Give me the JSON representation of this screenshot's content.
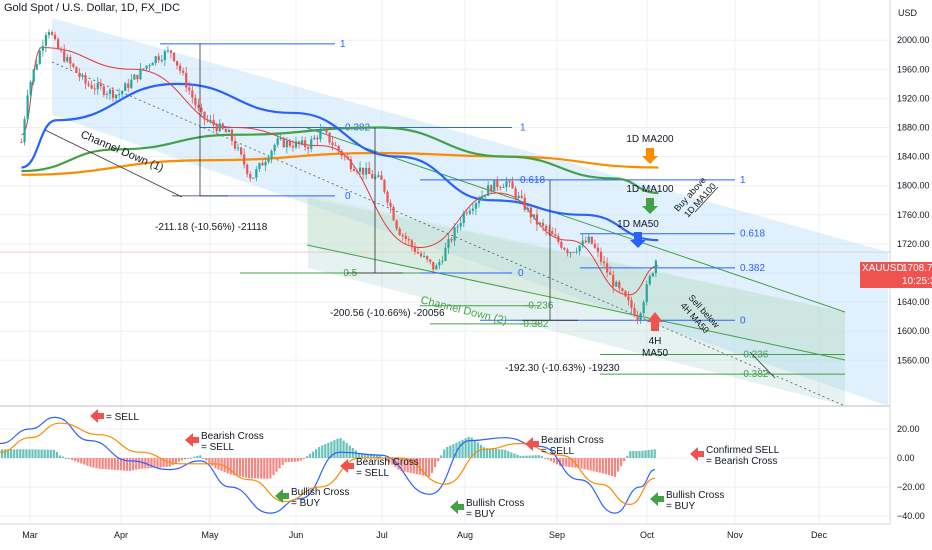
{
  "header": {
    "title": "Gold Spot / U.S. Dollar, 1D, FX_IDC",
    "currency": "USD"
  },
  "price_tag": {
    "symbol": "XAUUSD",
    "price": "1708.74",
    "countdown": "10:25:38"
  },
  "colors": {
    "up": "#26a69a",
    "down": "#ef5350",
    "ma200": "#fb8c00",
    "ma100": "#43a047",
    "ma50": "#2962ff",
    "fast_ma": "#e53935",
    "channel1": "#bbdefb",
    "channel2": "#c8e6c9",
    "fib_blue": "#2962ff",
    "fib_green": "#43a047",
    "grid": "#eef0f3",
    "axis_text": "#131722"
  },
  "icons": {
    "sell_arrow": "red-left-arrow-icon",
    "buy_arrow": "green-left-arrow-icon",
    "ma_arrow": "down-arrow-icon",
    "up_arrow": "up-arrow-icon"
  },
  "chart_data": [
    {
      "type": "candlestick",
      "title": "Gold Spot / U.S. Dollar, 1D, FX_IDC",
      "y_axis_ticks": [
        1560,
        1600,
        1640,
        1680,
        1720,
        1760,
        1800,
        1840,
        1880,
        1920,
        1960,
        2000
      ],
      "y_axis_labels": [
        "1560.00",
        "1600.00",
        "1640.00",
        "1680.00",
        "1720.00",
        "1760.00",
        "1800.00",
        "1840.00",
        "1880.00",
        "1920.00",
        "1960.00",
        "2000.00"
      ],
      "ylim": [
        1540,
        2040
      ],
      "x_axis_labels": [
        "Mar",
        "Apr",
        "May",
        "Jun",
        "Jul",
        "Aug",
        "Sep",
        "Oct",
        "Nov",
        "Dec"
      ],
      "grid": true,
      "last_price": 1708.74,
      "price_path_approx": [
        [
          "Feb 15",
          1860
        ],
        [
          "Feb 25",
          1930
        ],
        [
          "Mar 7",
          2020
        ],
        [
          "Mar 10",
          1990
        ],
        [
          "Mar 20",
          1940
        ],
        [
          "Mar 31",
          1925
        ],
        [
          "Apr 12",
          1975
        ],
        [
          "Apr 18",
          1985
        ],
        [
          "Apr 28",
          1895
        ],
        [
          "May 8",
          1870
        ],
        [
          "May 16",
          1810
        ],
        [
          "May 25",
          1860
        ],
        [
          "Jun 5",
          1855
        ],
        [
          "Jun 10",
          1875
        ],
        [
          "Jun 20",
          1830
        ],
        [
          "Jul 1",
          1805
        ],
        [
          "Jul 7",
          1740
        ],
        [
          "Jul 15",
          1705
        ],
        [
          "Jul 21",
          1685
        ],
        [
          "Aug 1",
          1765
        ],
        [
          "Aug 10",
          1800
        ],
        [
          "Aug 15",
          1805
        ],
        [
          "Aug 25",
          1750
        ],
        [
          "Sep 5",
          1710
        ],
        [
          "Sep 12",
          1725
        ],
        [
          "Sep 20",
          1665
        ],
        [
          "Sep 28",
          1620
        ],
        [
          "Oct 1",
          1660
        ],
        [
          "Oct 5",
          1708.74
        ]
      ],
      "series": [
        {
          "name": "1D MA200",
          "color": "#fb8c00",
          "values_approx": [
            [
              "Feb 15",
              1815
            ],
            [
              "Apr 30",
              1835
            ],
            [
              "Jul 1",
              1845
            ],
            [
              "Aug 15",
              1840
            ],
            [
              "Oct 5",
              1825
            ]
          ]
        },
        {
          "name": "1D MA100",
          "color": "#43a047",
          "values_approx": [
            [
              "Feb 15",
              1820
            ],
            [
              "Mar 31",
              1850
            ],
            [
              "May 10",
              1870
            ],
            [
              "Jun 30",
              1880
            ],
            [
              "Aug 15",
              1840
            ],
            [
              "Sep 20",
              1810
            ],
            [
              "Oct 5",
              1790
            ]
          ]
        },
        {
          "name": "1D MA50",
          "color": "#2962ff",
          "values_approx": [
            [
              "Feb 15",
              1825
            ],
            [
              "Mar 10",
              1890
            ],
            [
              "Apr 20",
              1940
            ],
            [
              "May 31",
              1900
            ],
            [
              "Jul 7",
              1840
            ],
            [
              "Aug 10",
              1780
            ],
            [
              "Sep 10",
              1760
            ],
            [
              "Oct 5",
              1725
            ]
          ]
        },
        {
          "name": "4H MA50",
          "color": "#e53935",
          "values_approx": [
            [
              "Feb 15",
              1870
            ],
            [
              "Mar 5",
              1990
            ],
            [
              "Apr 5",
              1960
            ],
            [
              "May 10",
              1880
            ],
            [
              "Jun 10",
              1855
            ],
            [
              "Jul 15",
              1715
            ],
            [
              "Aug 12",
              1790
            ],
            [
              "Sep 5",
              1725
            ],
            [
              "Sep 25",
              1650
            ],
            [
              "Oct 5",
              1690
            ]
          ]
        }
      ],
      "annotations": [
        {
          "text": "Channel Down (1)"
        },
        {
          "text": "Channel Down (2)"
        },
        {
          "text": "-211.18 (-10.56%) -21118"
        },
        {
          "text": "-200.56 (-10.66%) -20056"
        },
        {
          "text": "-192.30 (-10.63%) -19230"
        },
        {
          "text": "1D MA200"
        },
        {
          "text": "1D MA100"
        },
        {
          "text": "1D MA50"
        },
        {
          "text": "4H MA50",
          "lines": [
            "4H",
            "MA50"
          ]
        },
        {
          "text": "Buy above 1D MA100",
          "lines": [
            "Buy above",
            "1D MA100"
          ]
        },
        {
          "text": "Sell below 4H MA50",
          "lines": [
            "Sell below",
            "4H MA50"
          ]
        }
      ],
      "fib_levels": [
        {
          "label": "1",
          "price": 1995,
          "color": "#2962ff"
        },
        {
          "label": "0.382",
          "price": 1880,
          "color": "#2962ff"
        },
        {
          "label": "0",
          "price": 1786,
          "color": "#2962ff"
        },
        {
          "label": "1",
          "price": 1880,
          "color": "#2962ff"
        },
        {
          "label": "0.618",
          "price": 1808,
          "color": "#2962ff"
        },
        {
          "label": "1",
          "price": 1808,
          "color": "#2962ff"
        },
        {
          "label": "0.618",
          "price": 1734,
          "color": "#2962ff"
        },
        {
          "label": "0.382",
          "price": 1687,
          "color": "#2962ff"
        },
        {
          "label": "0",
          "price": 1680,
          "color": "#2962ff"
        },
        {
          "label": "0",
          "price": 1615,
          "color": "#2962ff"
        },
        {
          "label": "-0.5",
          "price": 1680,
          "color": "#43a047"
        },
        {
          "label": "-0.236",
          "price": 1635,
          "color": "#43a047"
        },
        {
          "label": "-0.382",
          "price": 1610,
          "color": "#43a047"
        },
        {
          "label": "-0.236",
          "price": 1568,
          "color": "#43a047"
        },
        {
          "label": "-0.382",
          "price": 1541,
          "color": "#43a047"
        }
      ]
    },
    {
      "type": "macd",
      "y_axis_ticks": [
        20,
        0,
        -20,
        -40
      ],
      "y_axis_labels": [
        "20.00",
        "0.00",
        "−20.00",
        "−40.00"
      ],
      "ylim": [
        -45,
        30
      ],
      "series": [
        {
          "name": "MACD",
          "color": "#2962ff"
        },
        {
          "name": "Signal",
          "color": "#fb8c00"
        }
      ],
      "annotations": [
        {
          "text": "= SELL",
          "signal": "sell"
        },
        {
          "text": "Bearish Cross = SELL",
          "lines": [
            "Bearish Cross",
            "= SELL"
          ],
          "signal": "sell"
        },
        {
          "text": "Bullish Cross = BUY",
          "lines": [
            "Bullish Cross",
            "= BUY"
          ],
          "signal": "buy"
        },
        {
          "text": "Bearish Cross = SELL",
          "lines": [
            "Bearish Cross",
            "= SELL"
          ],
          "signal": "sell"
        },
        {
          "text": "Bullish Cross = BUY",
          "lines": [
            "Bullish Cross",
            "= BUY"
          ],
          "signal": "buy"
        },
        {
          "text": "Bearish Cross = SELL",
          "lines": [
            "Bearish Cross",
            "= SELL"
          ],
          "signal": "sell"
        },
        {
          "text": "Bullish Cross = BUY",
          "lines": [
            "Bullish Cross",
            "= BUY"
          ],
          "signal": "buy"
        },
        {
          "text": "Confirmed SELL = Bearish Cross",
          "lines": [
            "Confirmed SELL",
            "= Bearish Cross"
          ],
          "signal": "sell"
        }
      ]
    }
  ]
}
